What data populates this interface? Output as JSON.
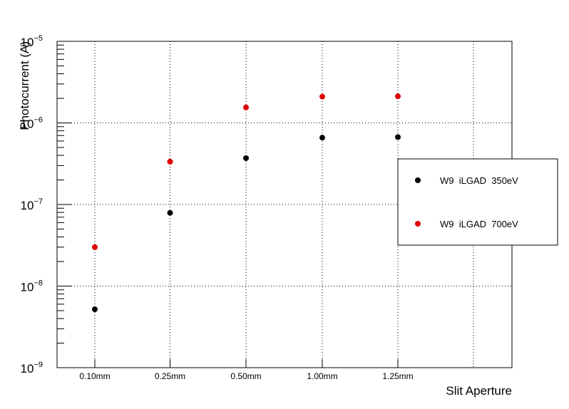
{
  "chart_data": {
    "type": "scatter",
    "title": "",
    "xlabel": "Slit Aperture",
    "ylabel": "Photocurrent (A)",
    "y_scale": "log",
    "ylim": [
      1e-09,
      1e-05
    ],
    "y_ticks": [
      {
        "value": 1e-09,
        "base": "10",
        "exp": "−9"
      },
      {
        "value": 1e-08,
        "base": "10",
        "exp": "−8"
      },
      {
        "value": 1e-07,
        "base": "10",
        "exp": "−7"
      },
      {
        "value": 1e-06,
        "base": "10",
        "exp": "−6"
      },
      {
        "value": 1e-05,
        "base": "10",
        "exp": "−5"
      }
    ],
    "categories": [
      "0.10mm",
      "0.25mm",
      "0.50mm",
      "1.00mm",
      "1.25mm"
    ],
    "grid": true,
    "legend_position": "right",
    "series": [
      {
        "name": "W9  iLGAD  350eV",
        "color": "#000000",
        "values": [
          5.2e-09,
          7.9e-08,
          3.7e-07,
          6.6e-07,
          6.7e-07
        ]
      },
      {
        "name": "W9  iLGAD  700eV",
        "color": "#e00000",
        "values": [
          3e-08,
          3.35e-07,
          1.55e-06,
          2.1e-06,
          2.12e-06
        ]
      }
    ]
  }
}
